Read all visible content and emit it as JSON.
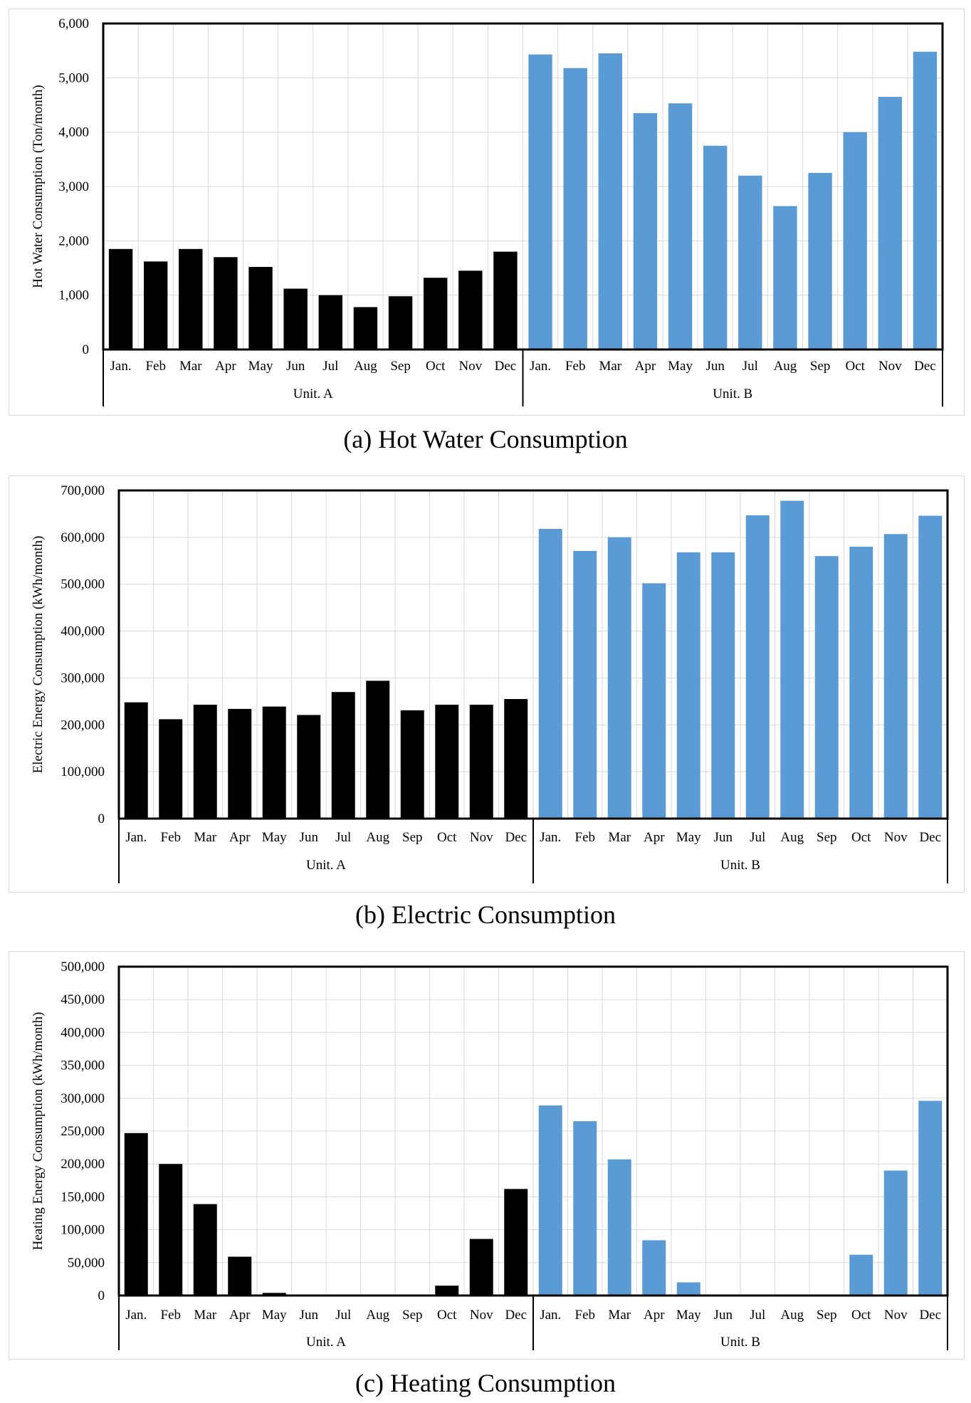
{
  "chart_data": [
    {
      "type": "bar",
      "caption": "(a) Hot Water Consumption",
      "ylabel": "Hot Water Consumption (Ton/month)",
      "ylim": [
        0,
        6000
      ],
      "ytick_step": 1000,
      "ytick_labels": [
        "0",
        "1,000",
        "2,000",
        "3,000",
        "4,000",
        "5,000",
        "6,000"
      ],
      "grid": true,
      "groups": [
        "Unit. A",
        "Unit. B"
      ],
      "categories": [
        "Jan.",
        "Feb",
        "Mar",
        "Apr",
        "May",
        "Jun",
        "Jul",
        "Aug",
        "Sep",
        "Oct",
        "Nov",
        "Dec"
      ],
      "colors": {
        "Unit. A": "#000000",
        "Unit. B": "#5b9bd5"
      },
      "series": [
        {
          "name": "Unit. A",
          "values": [
            1850,
            1620,
            1850,
            1700,
            1520,
            1120,
            1000,
            780,
            980,
            1320,
            1450,
            1800
          ]
        },
        {
          "name": "Unit. B",
          "values": [
            5430,
            5180,
            5450,
            4350,
            4530,
            3750,
            3200,
            2640,
            3250,
            4000,
            4650,
            5480
          ]
        }
      ]
    },
    {
      "type": "bar",
      "caption": "(b) Electric Consumption",
      "ylabel": "Electric Energy Consumption (kWh/month)",
      "ylim": [
        0,
        700000
      ],
      "ytick_step": 100000,
      "ytick_labels": [
        "0",
        "100,000",
        "200,000",
        "300,000",
        "400,000",
        "500,000",
        "600,000",
        "700,000"
      ],
      "grid": true,
      "groups": [
        "Unit. A",
        "Unit. B"
      ],
      "categories": [
        "Jan.",
        "Feb",
        "Mar",
        "Apr",
        "May",
        "Jun",
        "Jul",
        "Aug",
        "Sep",
        "Oct",
        "Nov",
        "Dec"
      ],
      "colors": {
        "Unit. A": "#000000",
        "Unit. B": "#5b9bd5"
      },
      "series": [
        {
          "name": "Unit. A",
          "values": [
            248000,
            212000,
            243000,
            234000,
            239000,
            221000,
            270000,
            294000,
            231000,
            243000,
            243000,
            255000
          ]
        },
        {
          "name": "Unit. B",
          "values": [
            618000,
            571000,
            600000,
            502000,
            568000,
            568000,
            647000,
            678000,
            560000,
            580000,
            607000,
            646000
          ]
        }
      ]
    },
    {
      "type": "bar",
      "caption": "(c) Heating Consumption",
      "ylabel": "Heating Energy Consumption (kWh/month)",
      "ylim": [
        0,
        500000
      ],
      "ytick_step": 50000,
      "ytick_labels": [
        "0",
        "50,000",
        "100,000",
        "150,000",
        "200,000",
        "250,000",
        "300,000",
        "350,000",
        "400,000",
        "450,000",
        "500,000"
      ],
      "grid": true,
      "groups": [
        "Unit. A",
        "Unit. B"
      ],
      "categories": [
        "Jan.",
        "Feb",
        "Mar",
        "Apr",
        "May",
        "Jun",
        "Jul",
        "Aug",
        "Sep",
        "Oct",
        "Nov",
        "Dec"
      ],
      "colors": {
        "Unit. A": "#000000",
        "Unit. B": "#5b9bd5"
      },
      "series": [
        {
          "name": "Unit. A",
          "values": [
            247000,
            200000,
            139000,
            59000,
            4000,
            0,
            0,
            0,
            0,
            15000,
            86000,
            162000
          ]
        },
        {
          "name": "Unit. B",
          "values": [
            289000,
            265000,
            207000,
            84000,
            20000,
            0,
            0,
            0,
            0,
            62000,
            190000,
            296000
          ]
        }
      ]
    }
  ]
}
